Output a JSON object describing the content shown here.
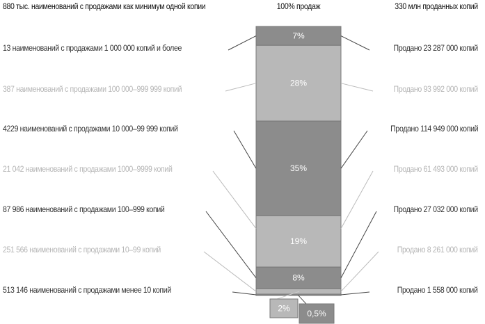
{
  "headers": {
    "left": "880 тыс. наименований с продажами как минимум одной копии",
    "center": "100% продаж",
    "right": "330 млн проданных копий"
  },
  "colors": {
    "dark": "#8c8c8c",
    "light": "#b8b8b8",
    "dark_text": "#333333",
    "light_text": "#b5b5b5"
  },
  "chart_data": {
    "type": "stacked-bar",
    "segments": [
      {
        "label": "7%",
        "value": 7,
        "tone": "dark",
        "titles": "13 наименований с продажами 1 000 000 копий и более",
        "sold": "Продано 23 287 000 копий"
      },
      {
        "label": "28%",
        "value": 28,
        "tone": "light",
        "titles": "387 наименований с продажами  100 000–999 999 копий",
        "sold": "Продано 93 992 000 копий"
      },
      {
        "label": "35%",
        "value": 35,
        "tone": "dark",
        "titles": "4229 наименований с продажами  10 000–99 999 копий",
        "sold": "Продано 114 949 000 копий"
      },
      {
        "label": "19%",
        "value": 19,
        "tone": "light",
        "titles": "21 042 наименований с продажами  1000–9999 копий",
        "sold": "Продано 61 493 000 копий"
      },
      {
        "label": "8%",
        "value": 8,
        "tone": "dark",
        "titles": "87 986 наименований с продажами  100–999 копий",
        "sold": "Продано 27 032 000 копий"
      },
      {
        "label": "2%",
        "value": 2,
        "tone": "light",
        "titles": "251 566 наименований с продажами  10–99 копий",
        "sold": "Продано 8 261 000 копий"
      },
      {
        "label": "0,5%",
        "value": 0.5,
        "tone": "dark",
        "titles": "513 146 наименований с продажами менее 10 копий",
        "sold": "Продано 1 558 000 копий"
      }
    ]
  }
}
